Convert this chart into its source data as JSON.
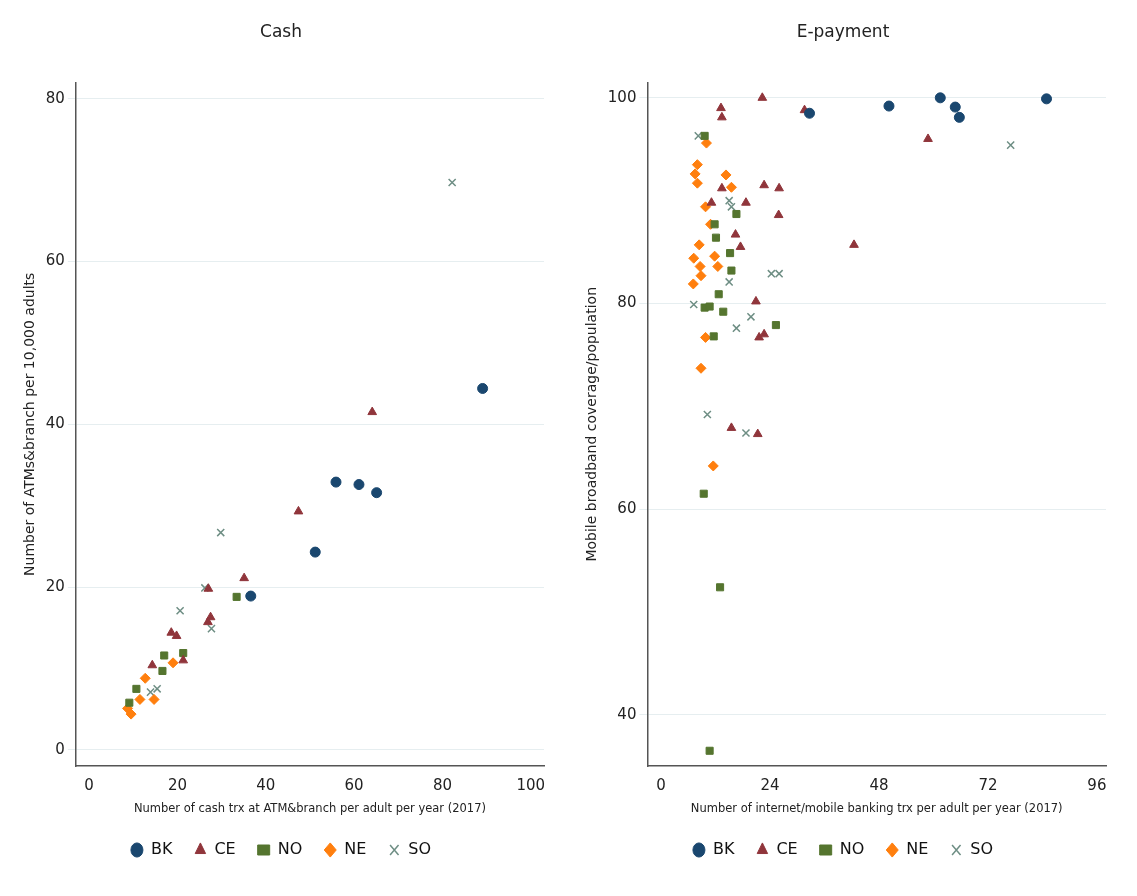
{
  "chart_data": [
    {
      "type": "scatter",
      "title": "Cash",
      "xlabel": "Number of cash trx at ATM&branch per adult per year (2017)",
      "ylabel": "Number of ATMs&branch per 10,000 adults",
      "xlim": [
        -3,
        103
      ],
      "ylim": [
        -2,
        82
      ],
      "xticks": [
        0,
        20,
        40,
        60,
        80,
        100
      ],
      "yticks": [
        0,
        20,
        40,
        60,
        80
      ],
      "grid": "y",
      "legend": "bottom",
      "series": [
        {
          "name": "BK",
          "color": "#1a476f",
          "marker": "circle",
          "x": [
            89.1,
            55.9,
            61.1,
            65.1,
            51.2,
            36.6
          ],
          "values": [
            44.4,
            32.9,
            32.6,
            31.6,
            24.3,
            18.9
          ]
        },
        {
          "name": "CE",
          "color": "#90353b",
          "marker": "triangle",
          "x": [
            64.1,
            47.4,
            35.1,
            27.0,
            27.5,
            26.9,
            18.6,
            19.8,
            14.3,
            21.3
          ],
          "values": [
            41.5,
            29.3,
            21.1,
            19.8,
            16.3,
            15.7,
            14.4,
            14.0,
            10.4,
            11.0
          ]
        },
        {
          "name": "NO",
          "color": "#55752f",
          "marker": "square",
          "x": [
            33.4,
            21.3,
            17.0,
            16.6,
            10.7,
            9.1
          ],
          "values": [
            18.8,
            11.9,
            11.6,
            9.7,
            7.5,
            5.8
          ]
        },
        {
          "name": "NE",
          "color": "#ff7f0e",
          "marker": "diamond",
          "x": [
            19.0,
            12.7,
            14.7,
            8.7,
            9.5,
            11.5
          ],
          "values": [
            10.7,
            8.8,
            6.2,
            5.1,
            4.4,
            6.2
          ]
        },
        {
          "name": "SO",
          "color": "#6e8e84",
          "marker": "cross",
          "x": [
            82.2,
            29.8,
            26.2,
            20.6,
            27.7,
            15.4,
            13.9
          ],
          "values": [
            69.7,
            26.7,
            19.9,
            17.1,
            14.9,
            7.5,
            7.1
          ]
        }
      ]
    },
    {
      "type": "scatter",
      "title": "E-payment",
      "xlabel": "Number of internet/mobile banking trx per adult per year (2017)",
      "ylabel": "Mobile broadband coverage/population",
      "xlim": [
        -3,
        98
      ],
      "ylim": [
        35,
        101.5
      ],
      "xticks": [
        0,
        24,
        48,
        72,
        96
      ],
      "yticks": [
        40,
        60,
        80,
        100
      ],
      "grid": "y",
      "legend": "bottom",
      "series": [
        {
          "name": "BK",
          "color": "#1a476f",
          "marker": "circle",
          "x": [
            32.7,
            50.2,
            61.5,
            64.8,
            65.7,
            84.9
          ],
          "values": [
            98.5,
            99.2,
            100,
            99.1,
            98.1,
            99.9
          ]
        },
        {
          "name": "CE",
          "color": "#90353b",
          "marker": "triangle",
          "x": [
            13.2,
            13.4,
            22.3,
            31.6,
            58.8,
            42.5,
            13.4,
            22.7,
            26,
            25.9,
            11.1,
            18.7,
            16.4,
            17.5,
            20.9,
            21.6,
            22.7,
            15.5,
            21.3
          ],
          "values": [
            99,
            98.1,
            100,
            98.8,
            96,
            85.7,
            91.2,
            91.5,
            91.2,
            88.6,
            89.8,
            89.8,
            86.7,
            85.5,
            80.2,
            76.7,
            77,
            67.9,
            67.3
          ]
        },
        {
          "name": "NO",
          "color": "#55752f",
          "marker": "square",
          "x": [
            9.6,
            16.6,
            11.8,
            12.1,
            15.2,
            15.5,
            12.7,
            9.6,
            10.7,
            13.7,
            11.6,
            25.3,
            9.4,
            13,
            10.7
          ],
          "values": [
            96.3,
            88.7,
            87.7,
            86.4,
            84.9,
            83.2,
            80.9,
            79.6,
            79.7,
            79.2,
            76.8,
            77.9,
            61.5,
            52.4,
            36.5
          ]
        },
        {
          "name": "NE",
          "color": "#ff7f0e",
          "marker": "diamond",
          "x": [
            10,
            8,
            7.5,
            8,
            14.3,
            15.5,
            9.8,
            10.9,
            8.4,
            7.2,
            11.8,
            12.5,
            8.6,
            8.8,
            7.1,
            9.8,
            8.8,
            11.5
          ],
          "values": [
            95.6,
            93.5,
            92.6,
            91.7,
            92.5,
            91.3,
            89.4,
            87.7,
            85.7,
            84.4,
            84.6,
            83.6,
            83.6,
            82.7,
            81.9,
            76.7,
            73.7,
            64.2
          ]
        },
        {
          "name": "SO",
          "color": "#6e8e84",
          "marker": "cross",
          "x": [
            8.2,
            77,
            15,
            15.5,
            24.3,
            26,
            15,
            7.2,
            19.8,
            16.6,
            10.2,
            18.7
          ],
          "values": [
            96.3,
            95.4,
            90,
            89.4,
            82.9,
            82.9,
            82.1,
            79.9,
            78.7,
            77.6,
            69.2,
            67.4
          ]
        }
      ]
    }
  ]
}
